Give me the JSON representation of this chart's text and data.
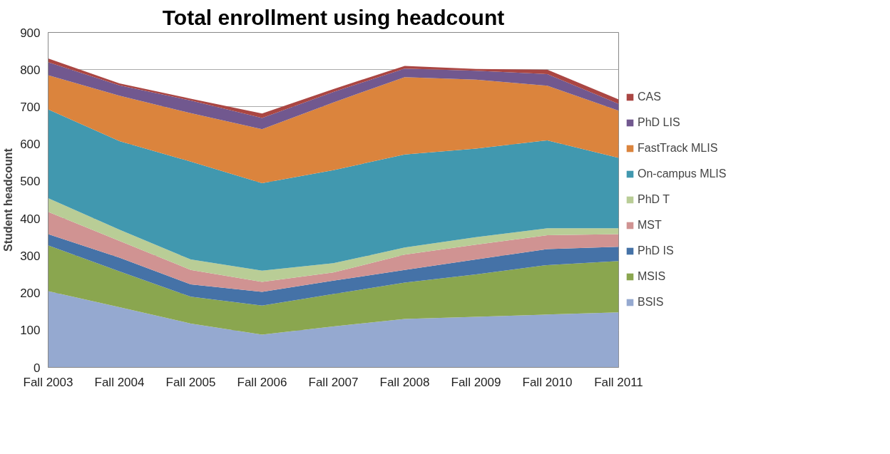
{
  "chart_data": {
    "type": "area",
    "stacked": true,
    "title": "Total enrollment using headcount",
    "ylabel": "Student headcount",
    "categories": [
      "Fall 2003",
      "Fall 2004",
      "Fall 2005",
      "Fall 2006",
      "Fall 2007",
      "Fall 2008",
      "Fall 2009",
      "Fall 2010",
      "Fall 2011"
    ],
    "ylim": [
      0,
      900
    ],
    "yticks": [
      0,
      100,
      200,
      300,
      400,
      500,
      600,
      700,
      800,
      900
    ],
    "grid": "y",
    "legend": "right",
    "series": [
      {
        "name": "BSIS",
        "color": "#95a9d0",
        "values": [
          205,
          162,
          118,
          88,
          110,
          130,
          136,
          142,
          148
        ]
      },
      {
        "name": "MSIS",
        "color": "#8aa64f",
        "values": [
          123,
          96,
          72,
          78,
          87,
          98,
          114,
          133,
          138
        ]
      },
      {
        "name": "PhD IS",
        "color": "#4572a7",
        "values": [
          30,
          37,
          33,
          37,
          36,
          34,
          40,
          43,
          38
        ]
      },
      {
        "name": "MST",
        "color": "#d09392",
        "values": [
          60,
          45,
          39,
          27,
          22,
          41,
          40,
          37,
          34
        ]
      },
      {
        "name": "PhD T",
        "color": "#b9cd96",
        "values": [
          37,
          30,
          28,
          30,
          25,
          19,
          20,
          19,
          16
        ]
      },
      {
        "name": "On-campus MLIS",
        "color": "#4198af",
        "values": [
          238,
          238,
          263,
          235,
          250,
          250,
          238,
          236,
          189
        ]
      },
      {
        "name": "FastTrack MLIS",
        "color": "#db843d",
        "values": [
          92,
          122,
          130,
          145,
          182,
          208,
          185,
          147,
          127
        ]
      },
      {
        "name": "PhD LIS",
        "color": "#71588f",
        "values": [
          35,
          28,
          34,
          30,
          28,
          23,
          24,
          31,
          18
        ]
      },
      {
        "name": "CAS",
        "color": "#aa4643",
        "values": [
          10,
          5,
          5,
          12,
          8,
          7,
          5,
          12,
          12
        ]
      }
    ]
  }
}
